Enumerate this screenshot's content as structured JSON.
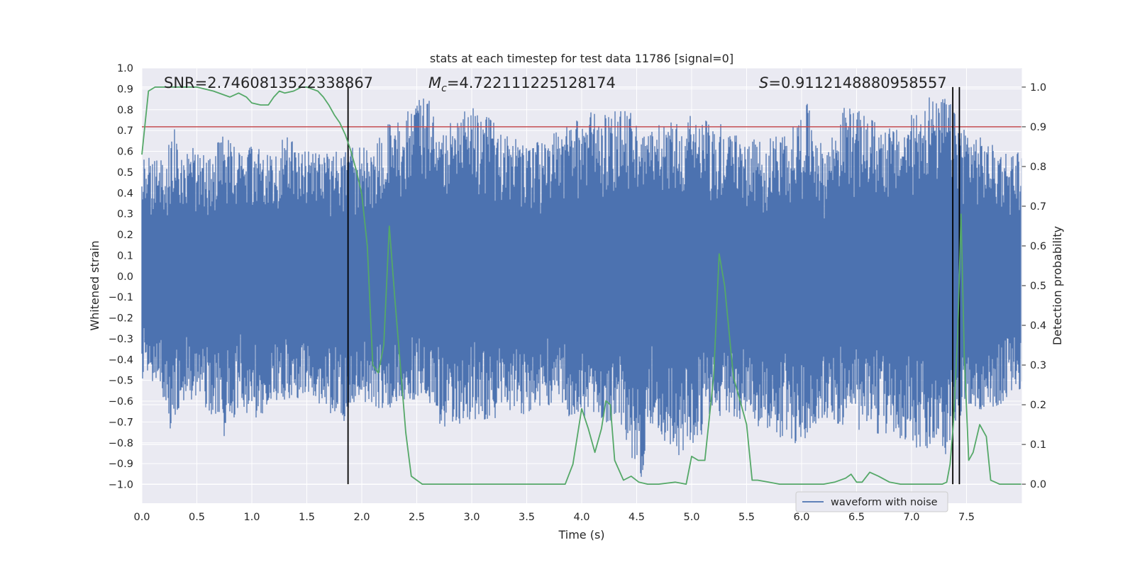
{
  "chart_data": {
    "type": "line",
    "title": "stats at each timestep for test data 11786 [signal=0]",
    "xlabel": "Time (s)",
    "ylabel_left": "Whitened strain",
    "ylabel_right": "Detection probability",
    "xlim": [
      0.0,
      8.0
    ],
    "ylim_left": [
      -1.09,
      1.0
    ],
    "ylim_right": [
      -0.048,
      1.048
    ],
    "x_ticks": [
      "0.0",
      "0.5",
      "1.0",
      "1.5",
      "2.0",
      "2.5",
      "3.0",
      "3.5",
      "4.0",
      "4.5",
      "5.0",
      "5.5",
      "6.0",
      "6.5",
      "7.0",
      "7.5"
    ],
    "y_ticks_left": [
      "1.0",
      "0.9",
      "0.8",
      "0.7",
      "0.6",
      "0.5",
      "0.4",
      "0.3",
      "0.2",
      "0.1",
      "0.0",
      "−0.1",
      "−0.2",
      "−0.3",
      "−0.4",
      "−0.5",
      "−0.6",
      "−0.7",
      "−0.8",
      "−0.9",
      "−1.0"
    ],
    "y_ticks_right": [
      "1.0",
      "0.9",
      "0.8",
      "0.7",
      "0.6",
      "0.5",
      "0.4",
      "0.3",
      "0.2",
      "0.1",
      "0.0"
    ],
    "grid": true,
    "legend_position": "lower-right",
    "colors": {
      "background": "#eaeaf2",
      "waveform": "#4c72b0",
      "probability": "#55a868",
      "threshold": "#c44e52",
      "marker": "#000000"
    },
    "annotations": {
      "snr": "SNR=2.7460813522338867",
      "mc_symbol": "M",
      "mc_sub": "c",
      "mc_value": "=4.722111225128174",
      "s_symbol": "S",
      "s_value": "=0.9112148880958557"
    },
    "threshold_probability": 0.9,
    "vertical_markers_s": [
      1.875,
      7.375,
      7.435
    ],
    "series": [
      {
        "name": "waveform with noise",
        "axis": "left",
        "envelope_x": [
          0.0,
          0.2,
          0.25,
          0.3,
          0.4,
          0.5,
          0.6,
          0.75,
          0.9,
          1.0,
          1.2,
          1.3,
          1.5,
          1.85,
          1.95,
          2.1,
          2.2,
          2.6,
          2.7,
          3.0,
          3.5,
          3.7,
          3.9,
          4.1,
          4.2,
          4.35,
          4.4,
          4.55,
          4.6,
          4.9,
          5.05,
          5.2,
          5.3,
          5.6,
          5.9,
          6.05,
          6.1,
          6.2,
          6.4,
          6.7,
          6.9,
          7.15,
          7.25,
          7.3,
          7.4,
          7.5,
          7.7,
          7.9,
          8.0
        ],
        "envelope_upper": [
          0.56,
          0.59,
          0.66,
          0.74,
          0.58,
          0.65,
          0.58,
          0.7,
          0.6,
          0.64,
          0.58,
          0.68,
          0.6,
          0.6,
          0.66,
          0.62,
          0.72,
          0.88,
          0.69,
          0.83,
          0.62,
          0.67,
          0.74,
          0.8,
          0.78,
          0.8,
          0.85,
          0.68,
          0.71,
          0.78,
          0.78,
          0.77,
          0.72,
          0.65,
          0.7,
          0.83,
          0.77,
          0.6,
          0.83,
          0.74,
          0.7,
          0.89,
          0.82,
          0.89,
          0.78,
          0.72,
          0.64,
          0.6,
          0.62
        ],
        "envelope_lower": [
          -0.52,
          -0.61,
          -0.81,
          -0.7,
          -0.6,
          -0.6,
          -0.65,
          -0.8,
          -0.6,
          -0.75,
          -0.58,
          -0.65,
          -0.55,
          -0.74,
          -0.6,
          -0.62,
          -0.65,
          -0.58,
          -0.73,
          -0.7,
          -0.66,
          -0.62,
          -0.68,
          -0.69,
          -0.72,
          -0.7,
          -0.8,
          -0.99,
          -0.72,
          -0.87,
          -0.8,
          -0.72,
          -0.65,
          -0.73,
          -0.8,
          -0.82,
          -0.72,
          -0.68,
          -0.73,
          -0.76,
          -0.78,
          -0.88,
          -0.75,
          -0.89,
          -0.72,
          -0.62,
          -0.66,
          -0.58,
          -0.55
        ]
      },
      {
        "name": "",
        "axis": "right",
        "x": [
          0.0,
          0.06,
          0.12,
          0.2,
          0.35,
          0.5,
          0.65,
          0.75,
          0.8,
          0.88,
          0.95,
          1.0,
          1.08,
          1.15,
          1.2,
          1.25,
          1.3,
          1.38,
          1.45,
          1.5,
          1.55,
          1.6,
          1.65,
          1.7,
          1.75,
          1.8,
          1.85,
          1.9,
          1.95,
          2.0,
          2.05,
          2.1,
          2.15,
          2.2,
          2.25,
          2.3,
          2.35,
          2.4,
          2.45,
          2.5,
          2.55,
          2.6,
          2.7,
          3.0,
          3.2,
          3.5,
          3.7,
          3.85,
          3.92,
          4.0,
          4.06,
          4.12,
          4.18,
          4.22,
          4.26,
          4.3,
          4.38,
          4.45,
          4.52,
          4.6,
          4.7,
          4.85,
          4.95,
          5.0,
          5.06,
          5.12,
          5.2,
          5.25,
          5.3,
          5.38,
          5.45,
          5.5,
          5.55,
          5.6,
          5.7,
          5.8,
          6.0,
          6.2,
          6.3,
          6.4,
          6.45,
          6.5,
          6.55,
          6.62,
          6.7,
          6.8,
          6.9,
          7.0,
          7.1,
          7.2,
          7.28,
          7.32,
          7.35,
          7.38,
          7.42,
          7.45,
          7.48,
          7.52,
          7.56,
          7.62,
          7.68,
          7.72,
          7.8,
          7.88,
          8.0
        ],
        "y": [
          0.83,
          0.99,
          1.0,
          1.0,
          1.0,
          1.0,
          0.99,
          0.98,
          0.975,
          0.985,
          0.975,
          0.96,
          0.955,
          0.955,
          0.975,
          0.99,
          0.985,
          0.99,
          1.0,
          1.0,
          0.995,
          0.99,
          0.975,
          0.955,
          0.93,
          0.91,
          0.88,
          0.84,
          0.79,
          0.73,
          0.6,
          0.3,
          0.28,
          0.35,
          0.65,
          0.47,
          0.3,
          0.13,
          0.02,
          0.01,
          0.0,
          0.0,
          0.0,
          0.0,
          0.0,
          0.0,
          0.0,
          0.0,
          0.05,
          0.19,
          0.14,
          0.08,
          0.14,
          0.21,
          0.2,
          0.06,
          0.01,
          0.02,
          0.005,
          0.0,
          0.0,
          0.005,
          0.0,
          0.07,
          0.06,
          0.06,
          0.27,
          0.58,
          0.5,
          0.27,
          0.2,
          0.15,
          0.01,
          0.01,
          0.005,
          0.0,
          0.0,
          0.0,
          0.005,
          0.015,
          0.025,
          0.005,
          0.005,
          0.03,
          0.02,
          0.005,
          0.0,
          0.0,
          0.0,
          0.0,
          0.0,
          0.005,
          0.05,
          0.15,
          0.38,
          0.68,
          0.32,
          0.06,
          0.08,
          0.15,
          0.12,
          0.01,
          0.0,
          0.0,
          0.0
        ]
      }
    ],
    "legend": [
      {
        "label": "waveform with noise",
        "color": "#4c72b0"
      }
    ]
  }
}
